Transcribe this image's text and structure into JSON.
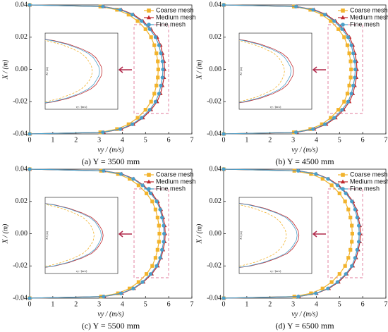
{
  "chart_data": [
    {
      "type": "line",
      "caption": "(a) Y = 3500 mm",
      "xlabel": "vy / (m/s)",
      "ylabel": "X / (m)",
      "xlim": [
        0,
        7
      ],
      "xticks": [
        0,
        1,
        2,
        3,
        4,
        5,
        6,
        7
      ],
      "ylim": [
        -0.04,
        0.04
      ],
      "yticks": [
        -0.04,
        -0.02,
        {
          "value": 0,
          "label": "0.00"
        },
        0.02,
        0.04
      ],
      "y": [
        0.04,
        0.039,
        0.037,
        0.034,
        0.03,
        0.025,
        0.02,
        0.015,
        0.01,
        0.005,
        0,
        -0.005,
        -0.01,
        -0.015,
        -0.02,
        -0.025,
        -0.03,
        -0.034,
        -0.037,
        -0.039,
        -0.04
      ],
      "legend": "upper right",
      "series": [
        {
          "name": "Coarse mesh",
          "color": "#f2b32c",
          "marker": "square",
          "values": [
            0,
            3.05,
            3.77,
            4.27,
            4.66,
            5.0,
            5.24,
            5.38,
            5.47,
            5.53,
            5.55,
            5.53,
            5.47,
            5.38,
            5.24,
            5.0,
            4.66,
            4.27,
            3.77,
            3.05,
            0
          ]
        },
        {
          "name": "Medium mesh",
          "color": "#c0282d",
          "marker": "triangle",
          "values": [
            0,
            3.2,
            3.96,
            4.48,
            4.89,
            5.24,
            5.5,
            5.65,
            5.73,
            5.8,
            5.82,
            5.8,
            5.73,
            5.65,
            5.5,
            5.24,
            4.89,
            4.48,
            3.96,
            3.2,
            0
          ]
        },
        {
          "name": "Fine mesh",
          "color": "#4a9fc9",
          "marker": "circle",
          "values": [
            0,
            3.16,
            3.91,
            4.43,
            4.83,
            5.18,
            5.43,
            5.58,
            5.66,
            5.73,
            5.75,
            5.73,
            5.66,
            5.58,
            5.43,
            5.18,
            4.83,
            4.43,
            3.91,
            3.16,
            0
          ]
        }
      ]
    },
    {
      "type": "line",
      "caption": "(b) Y = 4500 mm",
      "xlabel": "vy / (m/s)",
      "ylabel": "X / (m)",
      "xlim": [
        0,
        7
      ],
      "xticks": [
        0,
        1,
        2,
        3,
        4,
        5,
        6,
        7
      ],
      "ylim": [
        -0.04,
        0.04
      ],
      "yticks": [
        -0.04,
        -0.02,
        {
          "value": 0,
          "label": "0.00"
        },
        0.02,
        0.04
      ],
      "y": [
        0.04,
        0.039,
        0.037,
        0.034,
        0.03,
        0.025,
        0.02,
        0.015,
        0.01,
        0.005,
        0,
        -0.005,
        -0.01,
        -0.015,
        -0.02,
        -0.025,
        -0.03,
        -0.034,
        -0.037,
        -0.039,
        -0.04
      ],
      "legend": "upper right",
      "series": [
        {
          "name": "Coarse mesh",
          "color": "#f2b32c",
          "marker": "square",
          "values": [
            0,
            3.03,
            3.74,
            4.24,
            4.62,
            4.95,
            5.2,
            5.34,
            5.42,
            5.48,
            5.5,
            5.48,
            5.42,
            5.34,
            5.2,
            4.95,
            4.62,
            4.24,
            3.74,
            3.03,
            0
          ]
        },
        {
          "name": "Medium mesh",
          "color": "#c0282d",
          "marker": "triangle",
          "values": [
            0,
            3.16,
            3.91,
            4.43,
            4.83,
            5.18,
            5.43,
            5.58,
            5.66,
            5.73,
            5.75,
            5.73,
            5.66,
            5.58,
            5.43,
            5.18,
            4.83,
            4.43,
            3.91,
            3.16,
            0
          ]
        },
        {
          "name": "Fine mesh",
          "color": "#4a9fc9",
          "marker": "circle",
          "values": [
            0,
            3.12,
            3.86,
            4.37,
            4.77,
            5.11,
            5.37,
            5.51,
            5.59,
            5.66,
            5.68,
            5.66,
            5.59,
            5.51,
            5.37,
            5.11,
            4.77,
            4.37,
            3.86,
            3.12,
            0
          ]
        }
      ]
    },
    {
      "type": "line",
      "caption": "(c) Y = 5500 mm",
      "xlabel": "vy / (m/s)",
      "ylabel": "X / (m)",
      "xlim": [
        0,
        7
      ],
      "xticks": [
        0,
        1,
        2,
        3,
        4,
        5,
        6,
        7
      ],
      "ylim": [
        -0.04,
        0.04
      ],
      "yticks": [
        -0.04,
        -0.02,
        {
          "value": 0,
          "label": "0.00"
        },
        0.02,
        0.04
      ],
      "y": [
        0.04,
        0.039,
        0.037,
        0.034,
        0.03,
        0.025,
        0.02,
        0.015,
        0.01,
        0.005,
        0,
        -0.005,
        -0.01,
        -0.015,
        -0.02,
        -0.025,
        -0.03,
        -0.034,
        -0.037,
        -0.039,
        -0.04
      ],
      "legend": "upper right",
      "series": [
        {
          "name": "Coarse mesh",
          "color": "#f2b32c",
          "marker": "square",
          "values": [
            0,
            3.08,
            3.81,
            4.31,
            4.7,
            5.04,
            5.29,
            5.43,
            5.52,
            5.58,
            5.6,
            5.58,
            5.52,
            5.43,
            5.29,
            5.04,
            4.7,
            4.31,
            3.81,
            3.08,
            0
          ]
        },
        {
          "name": "Medium mesh",
          "color": "#c0282d",
          "marker": "triangle",
          "values": [
            0,
            3.22,
            3.98,
            4.5,
            4.91,
            5.27,
            5.53,
            5.67,
            5.76,
            5.83,
            5.85,
            5.83,
            5.76,
            5.67,
            5.53,
            5.27,
            4.91,
            4.5,
            3.98,
            3.22,
            0
          ]
        },
        {
          "name": "Fine mesh",
          "color": "#4a9fc9",
          "marker": "circle",
          "values": [
            0,
            3.19,
            3.94,
            4.47,
            4.87,
            5.22,
            5.48,
            5.63,
            5.71,
            5.78,
            5.8,
            5.78,
            5.71,
            5.63,
            5.48,
            5.22,
            4.87,
            4.47,
            3.94,
            3.19,
            0
          ]
        }
      ]
    },
    {
      "type": "line",
      "caption": "(d) Y = 6500 mm",
      "xlabel": "vy / (m/s)",
      "ylabel": "X / (m)",
      "xlim": [
        0,
        7
      ],
      "xticks": [
        0,
        1,
        2,
        3,
        4,
        5,
        6,
        7
      ],
      "ylim": [
        -0.04,
        0.04
      ],
      "yticks": [
        -0.04,
        -0.02,
        {
          "value": 0,
          "label": "0.00"
        },
        0.02,
        0.04
      ],
      "y": [
        0.04,
        0.039,
        0.037,
        0.034,
        0.03,
        0.025,
        0.02,
        0.015,
        0.01,
        0.005,
        0,
        -0.005,
        -0.01,
        -0.015,
        -0.02,
        -0.025,
        -0.03,
        -0.034,
        -0.037,
        -0.039,
        -0.04
      ],
      "legend": "upper right",
      "series": [
        {
          "name": "Coarse mesh",
          "color": "#f2b32c",
          "marker": "square",
          "values": [
            0,
            3.05,
            3.77,
            4.27,
            4.66,
            5.0,
            5.24,
            5.38,
            5.47,
            5.53,
            5.55,
            5.53,
            5.47,
            5.38,
            5.24,
            5.0,
            4.66,
            4.27,
            3.77,
            3.05,
            0
          ]
        },
        {
          "name": "Medium mesh",
          "color": "#c0282d",
          "marker": "triangle",
          "values": [
            0,
            3.25,
            4.01,
            4.54,
            4.96,
            5.31,
            5.58,
            5.72,
            5.81,
            5.88,
            5.9,
            5.88,
            5.81,
            5.72,
            5.58,
            5.31,
            4.96,
            4.54,
            4.01,
            3.25,
            0
          ]
        },
        {
          "name": "Fine mesh",
          "color": "#4a9fc9",
          "marker": "circle",
          "values": [
            0,
            3.22,
            3.98,
            4.5,
            4.91,
            5.27,
            5.53,
            5.67,
            5.76,
            5.83,
            5.85,
            5.83,
            5.76,
            5.67,
            5.53,
            5.27,
            4.91,
            4.5,
            3.98,
            3.22,
            0
          ]
        }
      ]
    }
  ]
}
